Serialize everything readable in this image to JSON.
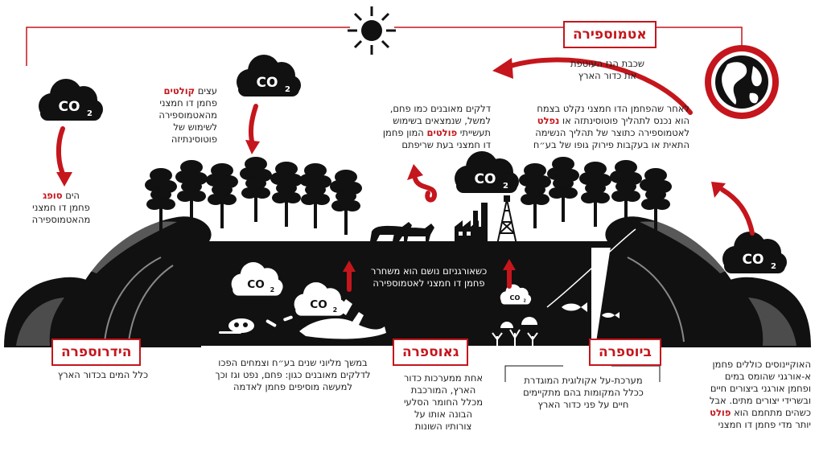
{
  "labels": {
    "atmosphere": "אטמוספירה",
    "hydrosphere": "הידרוספרה",
    "geosphere": "גאוספרה",
    "biosphere": "ביוספרה"
  },
  "co2": {
    "main": "CO",
    "sub": "2"
  },
  "texts": {
    "atmosphere_desc": "שכבת הגז העוטפת\nאת כדור הארץ",
    "plants": {
      "pre": "לאחר שהפחמן הדו חמצני נקלט בצמח\nהוא נכנס לתהליך פוטוסינתזה או ",
      "hl": "נפלט",
      "post": "\nלאטמוספירה כתוצר של תהליך הנשימה\nהתאית או בעקבות פירוק גופו של בע״ח"
    },
    "fuels": {
      "pre": "דלקים מאובנים כמו פחם,\nלמשל, שנמצאים בשימוש\nתעשייתי ",
      "hl": "פולטים",
      "post": " המון פחמן\nדו חמצני בעת שריפתם"
    },
    "trees": {
      "pre": "עצים ",
      "hl": "קולטים",
      "post": "\nפחמן דו חמצני\nמהאטמוספירה\nלשימוש של\nפוטוסינתיזה"
    },
    "sea": {
      "pre": "הים ",
      "hl": "סופג",
      "post": "\nפחמן דו חמצני\nמהאטמוספירה"
    },
    "organism": "כשאורגניזם נושם הוא משחרר\nפחמן דו חמצני לאטמוספירה",
    "hydro_desc": "כלל המים בכדור הארץ",
    "fossil": "במשך מליוני שנים בע״ח וצמחים הפכו\nלדלקים מאובנים כגון: פחם, נפט וגז וכך\nלמעשה מוסיפים פחמן לאדמה",
    "geo_desc": "אחת ממערכות כדור\nהארץ, המורכבת\nמכלל החומר הסלעי\nהבונה אותו על\nצורותיו השונות",
    "bio_desc": "מערכת-על אקולוגית המוגדרת\nככלל המקומות בהם מתקיימים\nחיים על פני כדור הארץ",
    "ocean": {
      "pre": "האוקיינוסים כוללים פחמן\nא-אורגני שהומס במים\nופחמן אורגני ביצורים חיים\nובשרידי יצורים מתים. אבל\nכשהים מתחמם הוא ",
      "hl": "פולט",
      "post": "\nיותר מדי פחמן דו חמצני"
    }
  },
  "icons": [
    "sun-icon",
    "globe-icon",
    "co2-cloud-icon",
    "tree-icon",
    "wave-icon",
    "factory-icon",
    "oil-derrick-icon",
    "horse-icon",
    "fish-icon",
    "skull-icon",
    "bone-icon",
    "coral-icon",
    "shell-icon",
    "arrow-icon"
  ],
  "colors": {
    "accent": "#c4161c",
    "ink": "#111111",
    "background": "#ffffff"
  }
}
